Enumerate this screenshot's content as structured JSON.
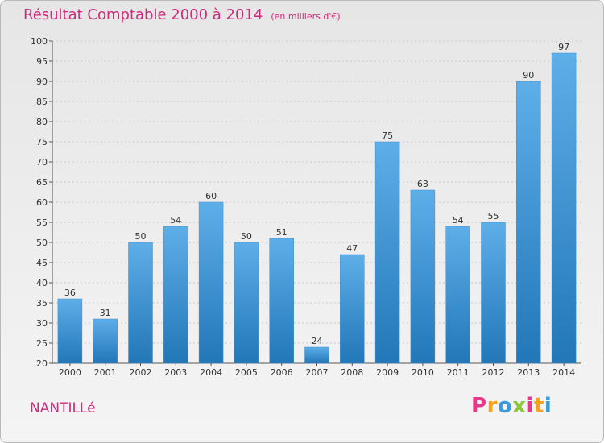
{
  "title": "Résultat Comptable 2000 à 2014",
  "subtitle": "(en milliers d'€)",
  "commune": "NANTILLé",
  "logo": {
    "letters": [
      "P",
      "r",
      "o",
      "x",
      "i",
      "t",
      "i"
    ],
    "colors": [
      "#e6398b",
      "#f6a21c",
      "#3b9ad9",
      "#8cc63f",
      "#e6398b",
      "#f6a21c",
      "#3b9ad9"
    ]
  },
  "colors": {
    "bar_light": "#5eaee8",
    "bar_dark": "#2277b8",
    "title": "#cc2a7a"
  },
  "chart_data": {
    "type": "bar",
    "title": "Résultat Comptable 2000 à 2014",
    "subtitle": "(en milliers d'€)",
    "xlabel": "",
    "ylabel": "",
    "categories": [
      "2000",
      "2001",
      "2002",
      "2003",
      "2004",
      "2005",
      "2006",
      "2007",
      "2008",
      "2009",
      "2010",
      "2011",
      "2012",
      "2013",
      "2014"
    ],
    "values": [
      36,
      31,
      50,
      54,
      60,
      50,
      51,
      24,
      47,
      75,
      63,
      54,
      55,
      90,
      97
    ],
    "ylim": [
      20,
      100
    ],
    "yticks": [
      20,
      25,
      30,
      35,
      40,
      45,
      50,
      55,
      60,
      65,
      70,
      75,
      80,
      85,
      90,
      95,
      100
    ],
    "grid": true
  }
}
